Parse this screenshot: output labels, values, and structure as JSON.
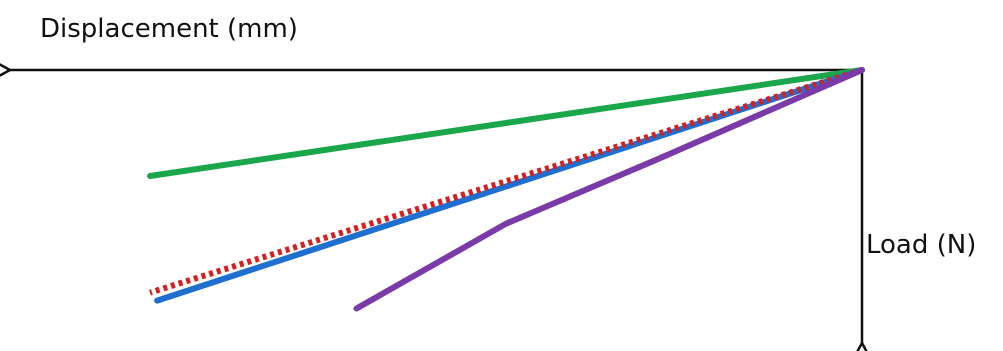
{
  "chart_data": {
    "type": "line",
    "xlabel": "Displacement (mm)",
    "ylabel": "Load (N)",
    "x_direction": "leftward",
    "y_direction": "downward",
    "axis_ticks": false,
    "grid": false,
    "legend": false,
    "series": [
      {
        "color": "#1aa64a",
        "style": "solid",
        "points": [
          [
            0,
            0
          ],
          [
            1.0,
            0.4
          ]
        ]
      },
      {
        "color": "#1f6fd1",
        "style": "solid",
        "points": [
          [
            0,
            0
          ],
          [
            0.99,
            0.87
          ]
        ]
      },
      {
        "color": "#d62020",
        "style": "dotted",
        "points": [
          [
            0,
            0
          ],
          [
            1.0,
            0.84
          ]
        ]
      },
      {
        "color": "#7a3aa8",
        "style": "solid",
        "points": [
          [
            0,
            0
          ],
          [
            0.29,
            0.34
          ],
          [
            0.5,
            0.58
          ],
          [
            0.71,
            0.9
          ]
        ]
      }
    ]
  }
}
